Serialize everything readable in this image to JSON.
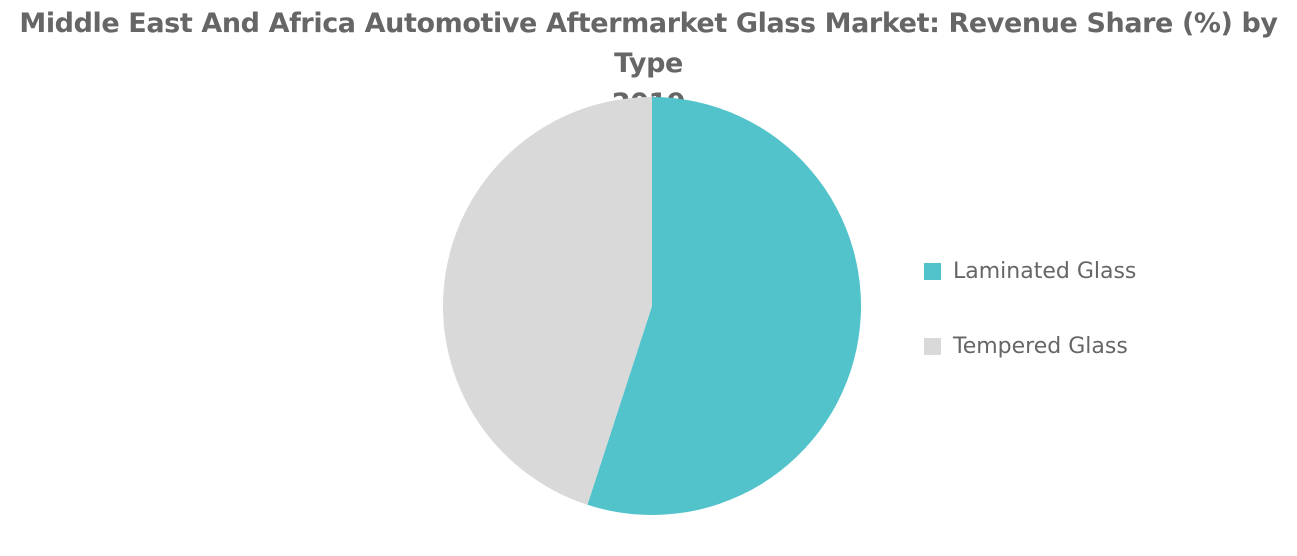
{
  "chart_data": {
    "type": "pie",
    "title": "Middle East And Africa Automotive Aftermarket Glass Market: Revenue Share (%) by Type",
    "subtitle": "2019",
    "slices": [
      {
        "label": "Laminated Glass",
        "value": 55.0,
        "color": "#52c3cb"
      },
      {
        "label": "Tempered Glass",
        "value": 45.0,
        "color": "#d9d9d9"
      }
    ],
    "legend_position": "right",
    "start_angle": "12 o'clock",
    "direction": "clockwise"
  }
}
